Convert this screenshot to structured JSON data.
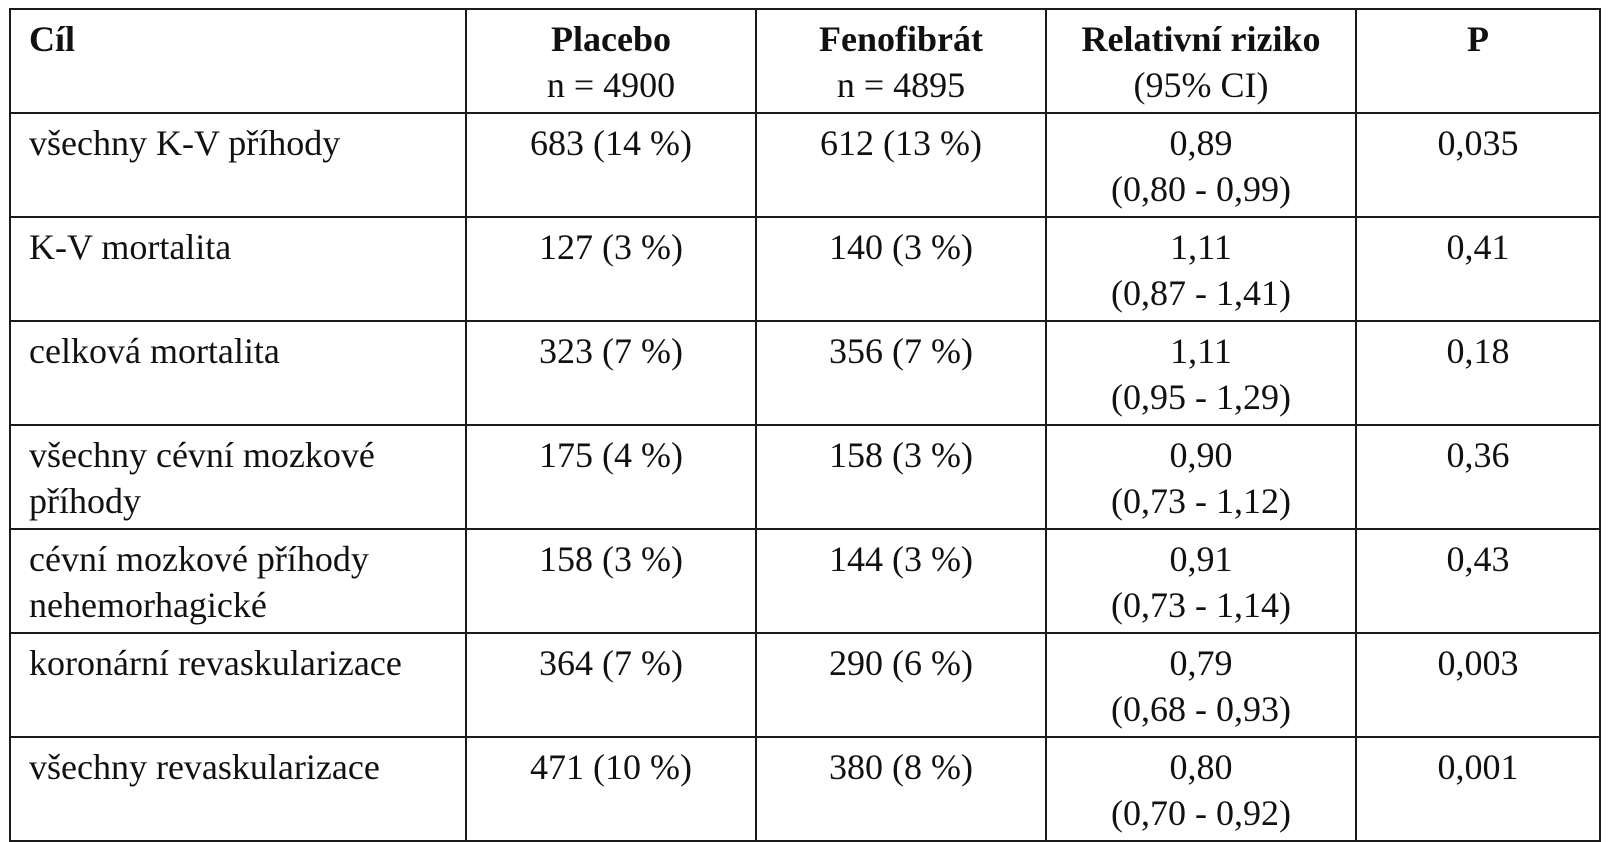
{
  "header": {
    "col_goal": "Cíl",
    "col_placebo": "Placebo",
    "col_placebo_n": "n = 4900",
    "col_fenofibrate": "Fenofibrát",
    "col_fenofibrate_n": "n = 4895",
    "col_rr": "Relativní riziko",
    "col_rr_ci": "(95% CI)",
    "col_p": "P"
  },
  "rows": [
    {
      "goal": "všechny K-V příhody",
      "placebo": "683 (14 %)",
      "fenofibrate": "612 (13 %)",
      "rr": "0,89",
      "ci": "(0,80 - 0,99)",
      "p": "0,035"
    },
    {
      "goal": "K-V mortalita",
      "placebo": "127 (3 %)",
      "fenofibrate": "140 (3 %)",
      "rr": "1,11",
      "ci": "(0,87 - 1,41)",
      "p": "0,41"
    },
    {
      "goal": "celková mortalita",
      "placebo": "323 (7 %)",
      "fenofibrate": "356 (7 %)",
      "rr": "1,11",
      "ci": "(0,95 - 1,29)",
      "p": "0,18"
    },
    {
      "goal": "všechny cévní mozkové příhody",
      "placebo": "175 (4 %)",
      "fenofibrate": "158 (3 %)",
      "rr": "0,90",
      "ci": "(0,73 - 1,12)",
      "p": "0,36"
    },
    {
      "goal": "cévní mozkové příhody nehemorhagické",
      "placebo": "158 (3 %)",
      "fenofibrate": "144 (3 %)",
      "rr": "0,91",
      "ci": "(0,73 - 1,14)",
      "p": "0,43"
    },
    {
      "goal": "koronární revaskularizace",
      "placebo": "364 (7 %)",
      "fenofibrate": "290 (6 %)",
      "rr": "0,79",
      "ci": "(0,68 - 0,93)",
      "p": "0,003"
    },
    {
      "goal": "všechny revaskularizace",
      "placebo": "471 (10 %)",
      "fenofibrate": "380 (8 %)",
      "rr": "0,80",
      "ci": "(0,70 - 0,92)",
      "p": "0,001"
    }
  ]
}
